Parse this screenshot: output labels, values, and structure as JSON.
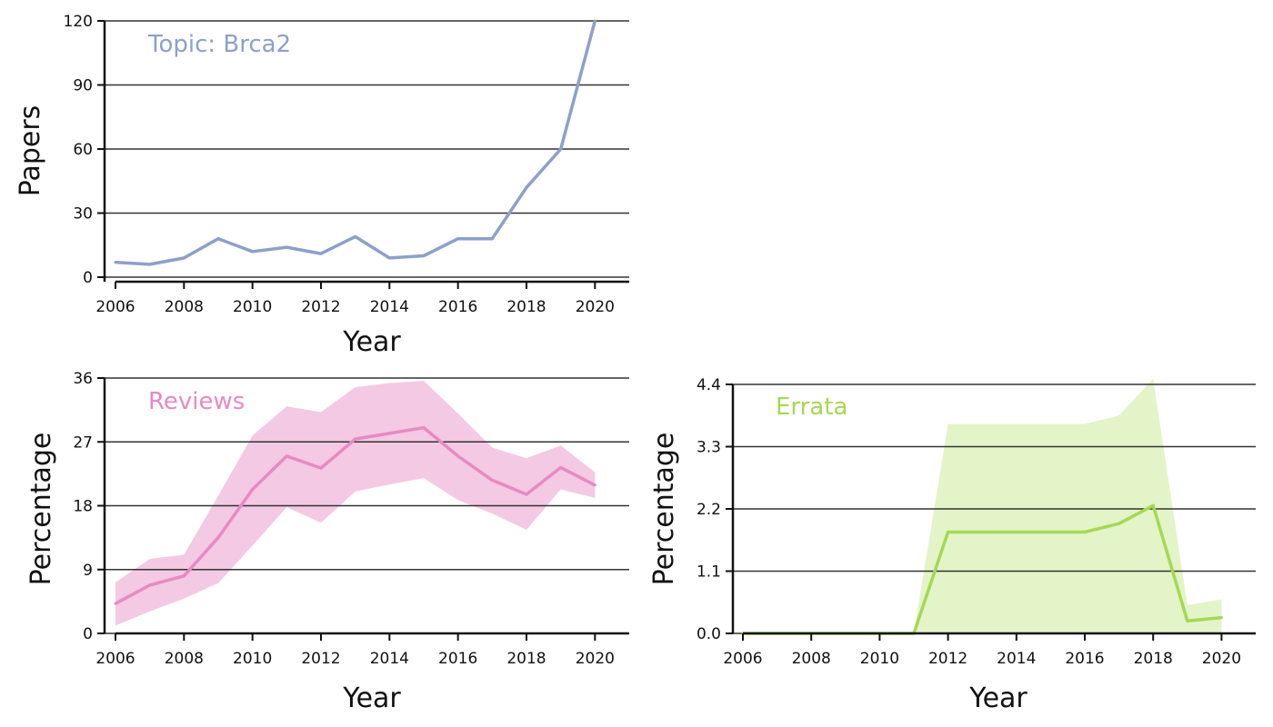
{
  "chart_data": [
    {
      "type": "line",
      "panel_label": "Topic: Brca2",
      "xlabel": "Year",
      "ylabel": "Papers",
      "color": "#8da0cb",
      "x": [
        2006,
        2007,
        2008,
        2009,
        2010,
        2011,
        2012,
        2013,
        2014,
        2015,
        2016,
        2017,
        2018,
        2019,
        2020
      ],
      "series": [
        {
          "values": [
            7,
            6,
            9,
            18,
            12,
            14,
            11,
            19,
            9,
            10,
            18,
            18,
            42,
            60,
            120
          ]
        }
      ],
      "xlim": [
        2006,
        2021
      ],
      "ylim": [
        0,
        120
      ],
      "xticks": [
        "2006",
        "2008",
        "2010",
        "2012",
        "2014",
        "2016",
        "2018",
        "2020"
      ],
      "yticks": [
        "0",
        "30",
        "60",
        "90",
        "120"
      ],
      "grid": "horizontal"
    },
    {
      "type": "area",
      "panel_label": "Reviews",
      "xlabel": "Year",
      "ylabel": "Percentage",
      "color": "#e78ac3",
      "band_color": "#f4c9e3",
      "x": [
        2006,
        2007,
        2008,
        2009,
        2010,
        2011,
        2012,
        2013,
        2014,
        2015,
        2016,
        2017,
        2018,
        2019,
        2020
      ],
      "series": [
        {
          "values": [
            4.2,
            6.8,
            8.1,
            13.5,
            20.3,
            25.0,
            23.3,
            27.4,
            28.2,
            29.0,
            25.0,
            21.6,
            19.6,
            23.4,
            20.9
          ]
        }
      ],
      "lower": [
        1.1,
        3.1,
        4.9,
        7.1,
        12.4,
        17.8,
        15.6,
        20.0,
        21.0,
        21.9,
        18.8,
        16.9,
        14.6,
        20.3,
        19.1
      ],
      "upper": [
        7.2,
        10.5,
        11.1,
        19.4,
        27.9,
        32.0,
        31.2,
        34.7,
        35.3,
        35.6,
        31.0,
        26.2,
        24.7,
        26.5,
        22.7
      ],
      "xlim": [
        2006,
        2021
      ],
      "ylim": [
        0,
        36
      ],
      "xticks": [
        "2006",
        "2008",
        "2010",
        "2012",
        "2014",
        "2016",
        "2018",
        "2020"
      ],
      "yticks": [
        "0",
        "9",
        "18",
        "27",
        "36"
      ],
      "grid": "horizontal"
    },
    {
      "type": "area",
      "panel_label": "Errata",
      "xlabel": "Year",
      "ylabel": "Percentage",
      "color": "#a6d854",
      "band_color": "#e3f4c8",
      "x": [
        2006,
        2007,
        2008,
        2009,
        2010,
        2011,
        2012,
        2013,
        2014,
        2015,
        2016,
        2017,
        2018,
        2019,
        2020
      ],
      "series": [
        {
          "values": [
            0,
            0,
            0,
            0,
            0,
            0,
            1.79,
            1.79,
            1.79,
            1.79,
            1.79,
            1.94,
            2.26,
            0.22,
            0.28
          ]
        }
      ],
      "lower": [
        0,
        0,
        0,
        0,
        0,
        0,
        0,
        0,
        0,
        0,
        0,
        0,
        0,
        0,
        0
      ],
      "upper": [
        0,
        0,
        0,
        0,
        0,
        0,
        3.7,
        3.7,
        3.7,
        3.7,
        3.7,
        3.85,
        4.5,
        0.5,
        0.6
      ],
      "xlim": [
        2006,
        2021
      ],
      "ylim": [
        0,
        4.4
      ],
      "xticks": [
        "2006",
        "2008",
        "2010",
        "2012",
        "2014",
        "2016",
        "2018",
        "2020"
      ],
      "yticks": [
        "0.0",
        "1.1",
        "2.2",
        "3.3",
        "4.4"
      ],
      "grid": "horizontal"
    }
  ]
}
